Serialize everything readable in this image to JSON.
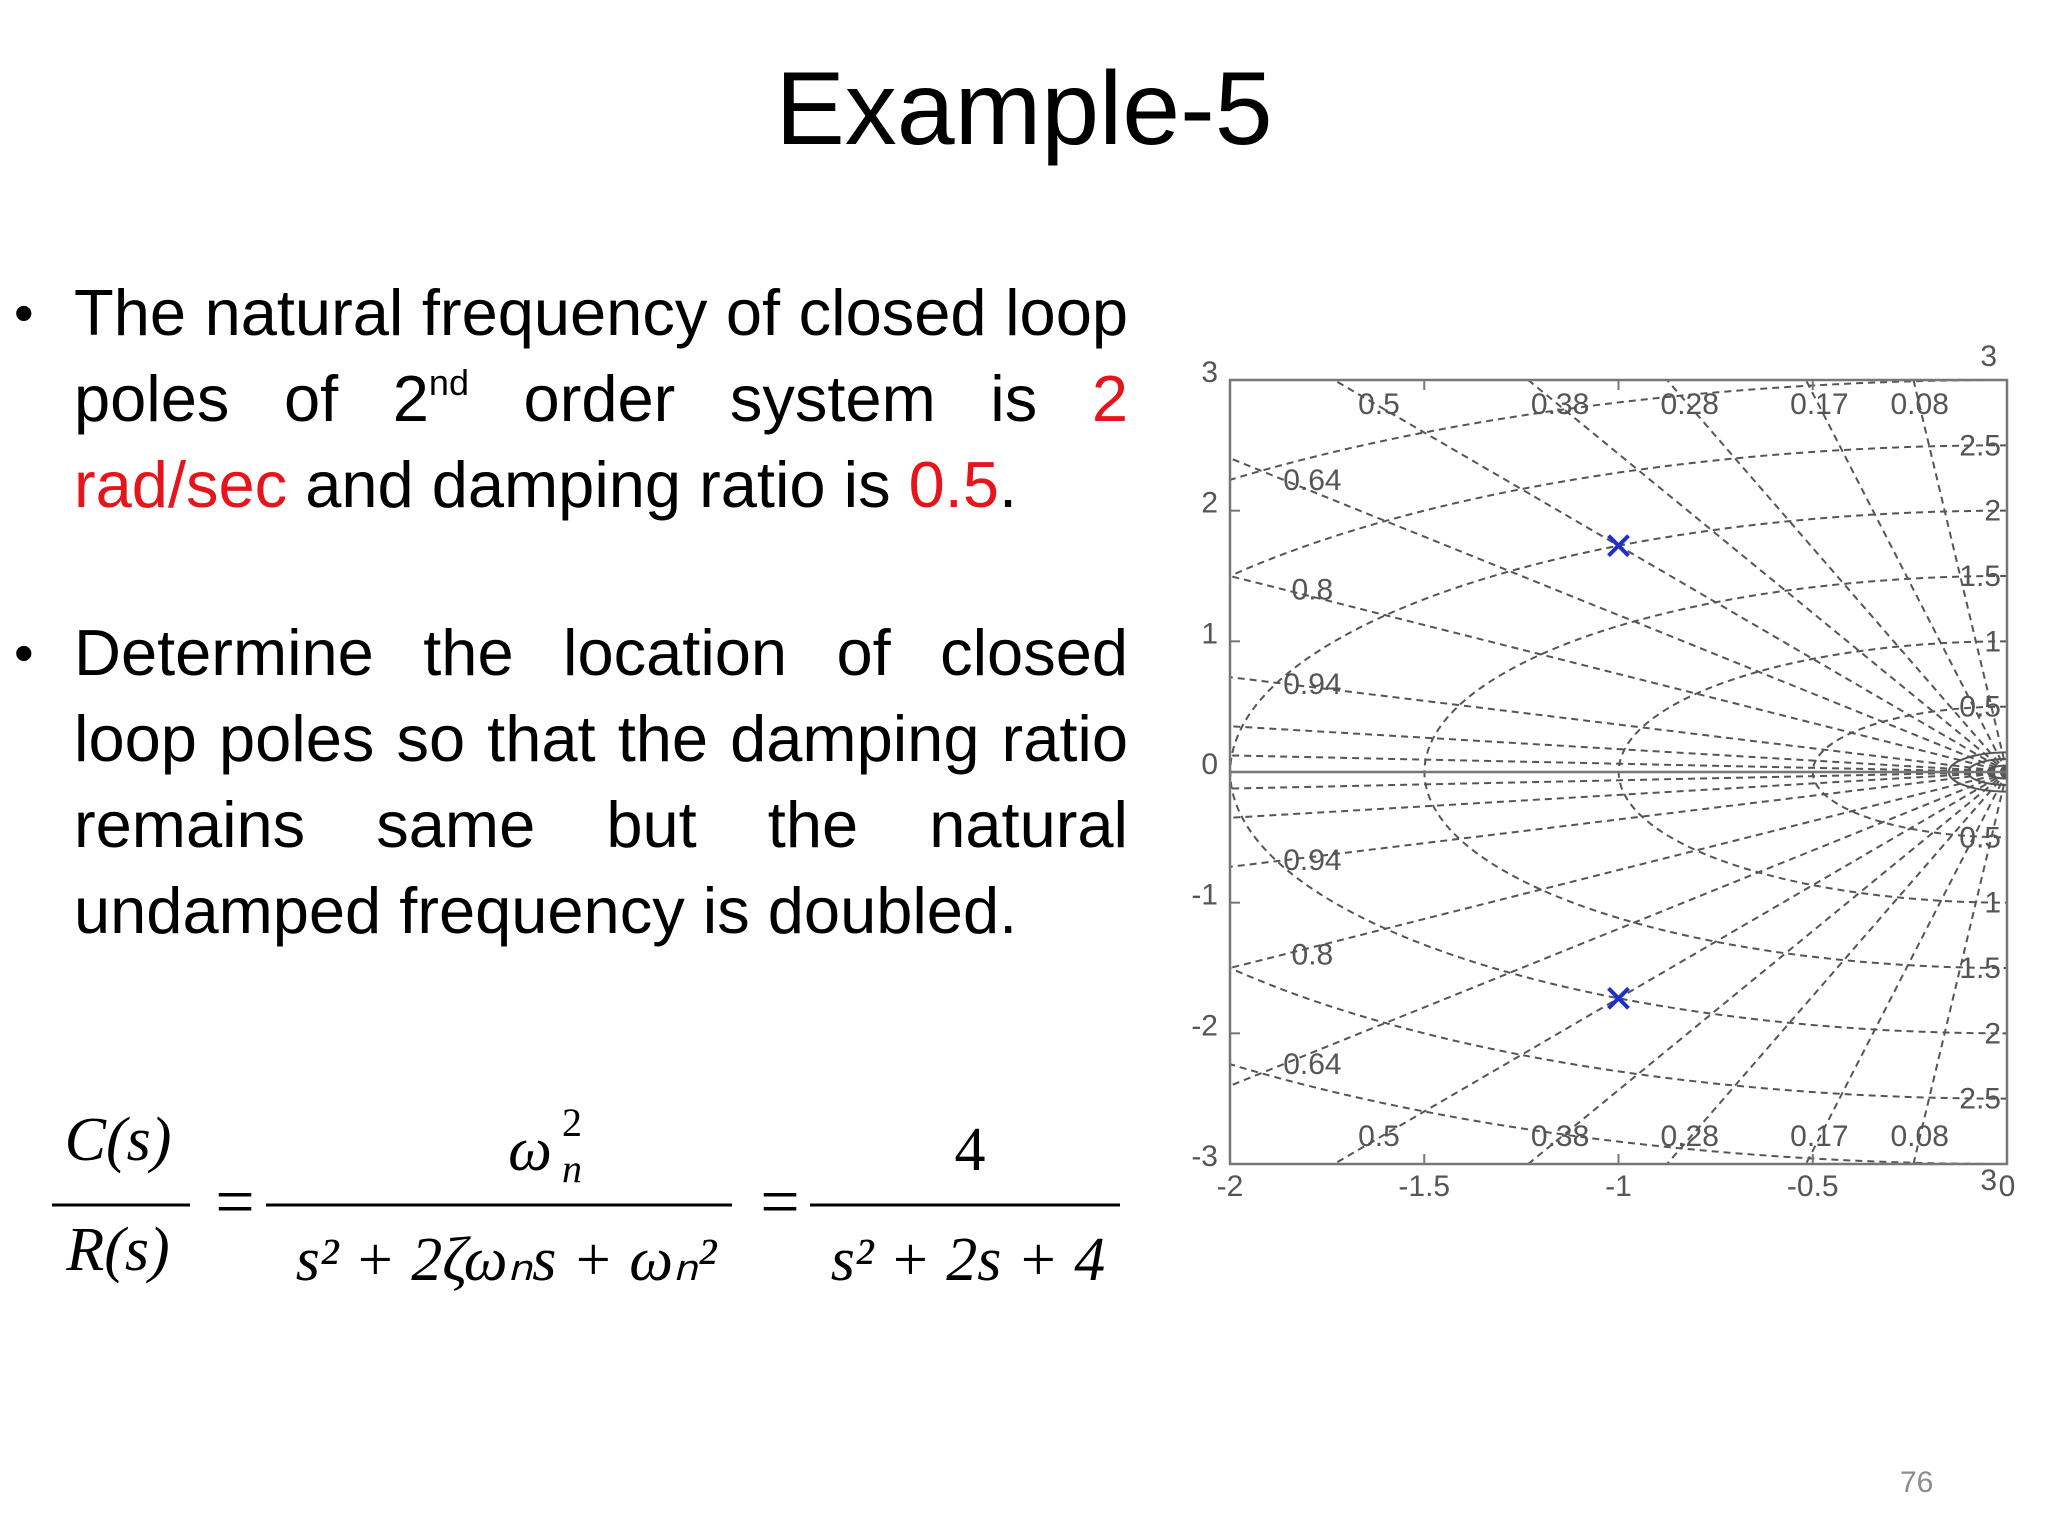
{
  "slide": {
    "title": "Example-5",
    "page_number": "76"
  },
  "bullets": [
    {
      "symbol": "•",
      "text_a": "The natural frequency of closed loop poles of 2",
      "sup": "nd",
      "text_b": " order system is ",
      "red1": "2 rad/sec",
      "text_c": " and damping ratio is ",
      "red2": "0.5",
      "text_d": "."
    },
    {
      "symbol": "•",
      "text": "Determine the location of closed loop poles so that the damping ratio remains same but the natural undamped frequency is doubled."
    }
  ],
  "equation": {
    "lhs_num": "C(s)",
    "lhs_den": "R(s)",
    "eq_sign": "=",
    "mid_num_base": "ω",
    "mid_num_sub": "n",
    "mid_num_sup": "2",
    "mid_den": "s² + 2ζωₙs + ωₙ²",
    "rhs_num": "4",
    "rhs_den": "s² + 2s + 4"
  },
  "colors": {
    "accent_red": "#e8141b",
    "pole_marker": "#1f2fc9",
    "grid_line": "#555555",
    "axis_line": "#777777"
  },
  "chart_data": {
    "type": "scatter",
    "title": "",
    "xlabel": "",
    "ylabel": "",
    "xlim": [
      -2,
      0
    ],
    "ylim": [
      -3,
      3
    ],
    "x_ticks": [
      "-2",
      "-1.5",
      "-1",
      "-0.5",
      "0"
    ],
    "y_ticks": [
      "-3",
      "-2",
      "-1",
      "0",
      "1",
      "2",
      "3"
    ],
    "grid": "sgrid",
    "series": [
      {
        "marker": "x",
        "points": [
          [
            -1,
            1.732
          ],
          [
            -1,
            -1.732
          ]
        ]
      }
    ],
    "damping_lines": [
      0.08,
      0.17,
      0.28,
      0.38,
      0.5,
      0.64,
      0.8,
      0.94
    ],
    "wn_circles": [
      0.5,
      1,
      1.5,
      2,
      2.5,
      3
    ],
    "zeta_labels_top": [
      "0.5",
      "0.38",
      "0.28",
      "0.17",
      "0.08"
    ],
    "zeta_labels_left": [
      "0.64",
      "0.8",
      "0.94"
    ],
    "wn_labels": [
      "2.5",
      "2",
      "1.5",
      "1",
      "0.5"
    ],
    "wn_label_top_clipped": "3",
    "wn_label_bottom": "3"
  }
}
